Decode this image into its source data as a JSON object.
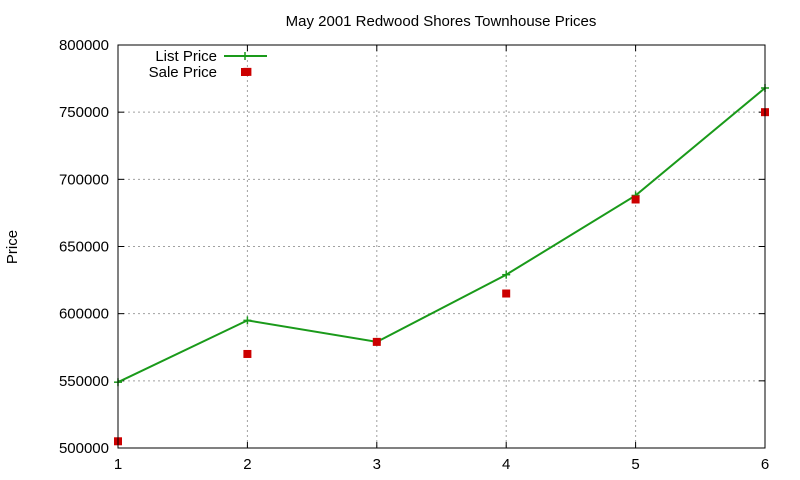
{
  "chart_data": {
    "type": "line",
    "title": "May 2001 Redwood Shores Townhouse Prices",
    "xlabel": "",
    "ylabel": "Price",
    "x": [
      1,
      2,
      3,
      4,
      5,
      6
    ],
    "xlim": [
      1,
      6
    ],
    "ylim": [
      500000,
      800000
    ],
    "xticks": [
      "1",
      "2",
      "3",
      "4",
      "5",
      "6"
    ],
    "yticks": [
      "500000",
      "550000",
      "600000",
      "650000",
      "700000",
      "750000",
      "800000"
    ],
    "grid": true,
    "legend_position": "top-left",
    "series": [
      {
        "name": "List Price",
        "style": "line-plus",
        "color": "#1a9a1a",
        "values": [
          549000,
          595000,
          579000,
          629000,
          688000,
          768000
        ]
      },
      {
        "name": "Sale Price",
        "style": "square-points",
        "color": "#cc0000",
        "values": [
          505000,
          570000,
          579000,
          615000,
          685000,
          750000
        ]
      }
    ],
    "extra_points": [
      {
        "series": "Sale Price",
        "x": 2,
        "y": 780000
      }
    ]
  }
}
